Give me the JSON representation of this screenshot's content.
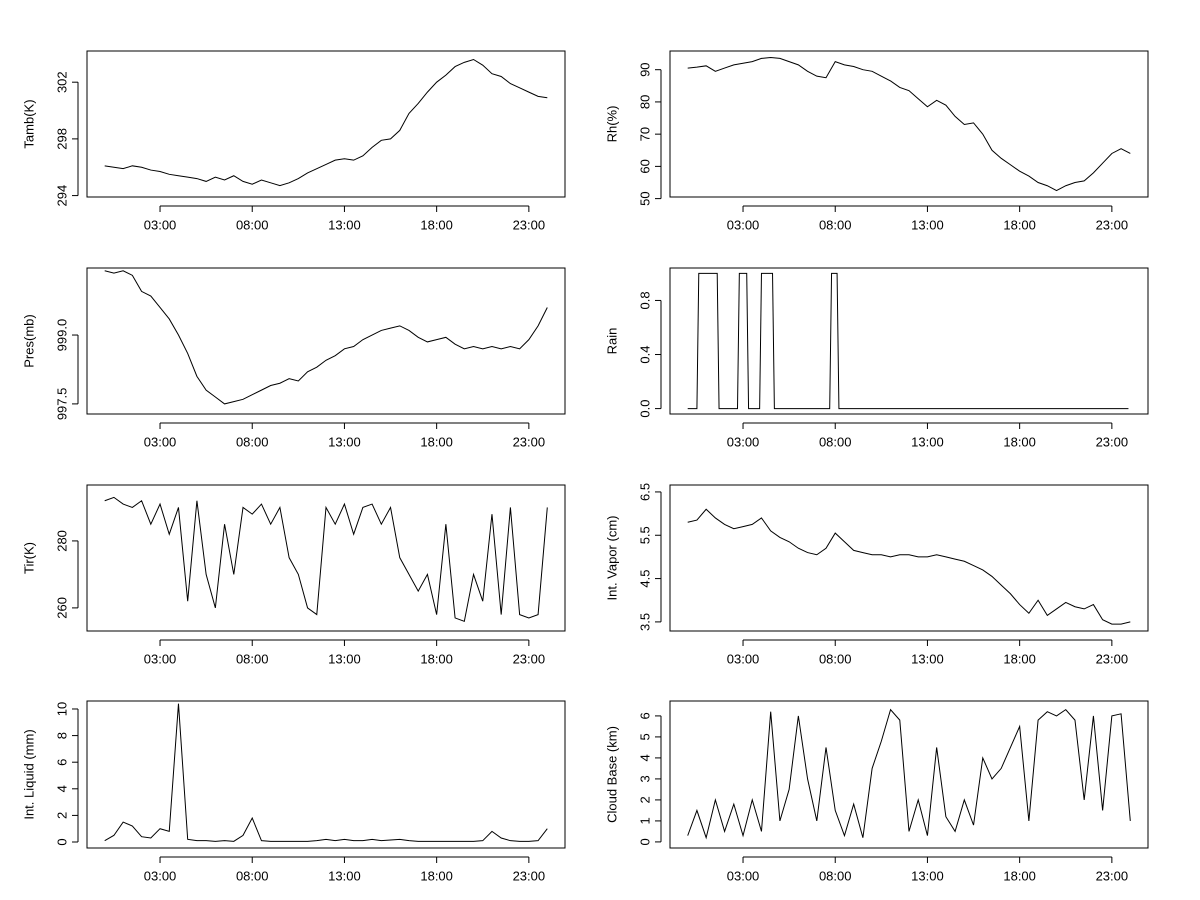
{
  "chart_data": [
    {
      "type": "line",
      "ylabel": "Tamb(K)",
      "color": "#000000",
      "grid": false,
      "x": [
        0,
        0.5,
        1,
        1.5,
        2,
        2.5,
        3,
        3.5,
        4,
        4.5,
        5,
        5.5,
        6,
        6.5,
        7,
        7.5,
        8,
        8.5,
        9,
        9.5,
        10,
        10.5,
        11,
        11.5,
        12,
        12.5,
        13,
        13.5,
        14,
        14.5,
        15,
        15.5,
        16,
        16.5,
        17,
        17.5,
        18,
        18.5,
        19,
        19.5,
        20,
        20.5,
        21,
        21.5,
        22,
        22.5,
        23,
        23.5,
        24
      ],
      "values": [
        296.1,
        296.0,
        295.9,
        296.1,
        296.0,
        295.8,
        295.7,
        295.5,
        295.4,
        295.3,
        295.2,
        295.0,
        295.3,
        295.1,
        295.4,
        295.0,
        294.8,
        295.1,
        294.9,
        294.7,
        294.9,
        295.2,
        295.6,
        295.9,
        296.2,
        296.5,
        296.6,
        296.5,
        296.8,
        297.4,
        297.9,
        298.0,
        298.6,
        299.8,
        300.5,
        301.3,
        302.0,
        302.5,
        303.1,
        303.4,
        303.6,
        303.2,
        302.6,
        302.4,
        301.9,
        301.6,
        301.3,
        301.0,
        300.9
      ],
      "xlim": [
        -0.96,
        24.96
      ],
      "xticks": [
        {
          "value": 3,
          "label": "03:00"
        },
        {
          "value": 8,
          "label": "08:00"
        },
        {
          "value": 13,
          "label": "13:00"
        },
        {
          "value": 18,
          "label": "18:00"
        },
        {
          "value": 23,
          "label": "23:00"
        }
      ],
      "ylim": [
        293.9,
        304.2
      ],
      "yticks": [
        294,
        298,
        302
      ]
    },
    {
      "type": "line",
      "ylabel": "Rh(%)",
      "color": "#000000",
      "grid": false,
      "x": [
        0,
        0.5,
        1,
        1.5,
        2,
        2.5,
        3,
        3.5,
        4,
        4.5,
        5,
        5.5,
        6,
        6.5,
        7,
        7.5,
        8,
        8.5,
        9,
        9.5,
        10,
        10.5,
        11,
        11.5,
        12,
        12.5,
        13,
        13.5,
        14,
        14.5,
        15,
        15.5,
        16,
        16.5,
        17,
        17.5,
        18,
        18.5,
        19,
        19.5,
        20,
        20.5,
        21,
        21.5,
        22,
        22.5,
        23,
        23.5,
        24
      ],
      "values": [
        90.5,
        90.8,
        91.2,
        89.5,
        90.5,
        91.5,
        92.0,
        92.5,
        93.5,
        93.8,
        93.5,
        92.5,
        91.5,
        89.5,
        88.0,
        87.5,
        92.5,
        91.5,
        91.0,
        90.0,
        89.5,
        88.0,
        86.5,
        84.5,
        83.5,
        81.0,
        78.5,
        80.5,
        79.0,
        75.5,
        73.0,
        73.5,
        70.0,
        65.0,
        62.5,
        60.5,
        58.5,
        57.0,
        55.0,
        54.0,
        52.5,
        54.0,
        55.0,
        55.5,
        58.0,
        61.0,
        64.0,
        65.5,
        64.0
      ],
      "xlim": [
        -0.96,
        24.96
      ],
      "xticks": [
        {
          "value": 3,
          "label": "03:00"
        },
        {
          "value": 8,
          "label": "08:00"
        },
        {
          "value": 13,
          "label": "13:00"
        },
        {
          "value": 18,
          "label": "18:00"
        },
        {
          "value": 23,
          "label": "23:00"
        }
      ],
      "ylim": [
        50.5,
        95.8
      ],
      "yticks": [
        50,
        60,
        70,
        80,
        90
      ]
    },
    {
      "type": "line",
      "ylabel": "Pres(mb)",
      "color": "#000000",
      "grid": false,
      "x": [
        0,
        0.5,
        1,
        1.5,
        2,
        2.5,
        3,
        3.5,
        4,
        4.5,
        5,
        5.5,
        6,
        6.5,
        7,
        7.5,
        8,
        8.5,
        9,
        9.5,
        10,
        10.5,
        11,
        11.5,
        12,
        12.5,
        13,
        13.5,
        14,
        14.5,
        15,
        15.5,
        16,
        16.5,
        17,
        17.5,
        18,
        18.5,
        19,
        19.5,
        20,
        20.5,
        21,
        21.5,
        22,
        22.5,
        23,
        23.5,
        24
      ],
      "values": [
        1000.4,
        1000.35,
        1000.4,
        1000.3,
        999.95,
        999.85,
        999.6,
        999.35,
        999.0,
        998.6,
        998.1,
        997.8,
        997.65,
        997.5,
        997.55,
        997.6,
        997.7,
        997.8,
        997.9,
        997.95,
        998.05,
        998.0,
        998.2,
        998.3,
        998.45,
        998.55,
        998.7,
        998.75,
        998.9,
        999.0,
        999.1,
        999.15,
        999.2,
        999.1,
        998.95,
        998.85,
        998.9,
        998.95,
        998.8,
        998.7,
        998.75,
        998.7,
        998.75,
        998.7,
        998.75,
        998.7,
        998.9,
        999.2,
        999.6
      ],
      "xlim": [
        -0.96,
        24.96
      ],
      "xticks": [
        {
          "value": 3,
          "label": "03:00"
        },
        {
          "value": 8,
          "label": "08:00"
        },
        {
          "value": 13,
          "label": "13:00"
        },
        {
          "value": 18,
          "label": "18:00"
        },
        {
          "value": 23,
          "label": "23:00"
        }
      ],
      "ylim": [
        997.28,
        1000.46
      ],
      "yticks": [
        997.5,
        {
          "value": 999,
          "label": "999.0"
        }
      ]
    },
    {
      "type": "line",
      "ylabel": "Rain",
      "color": "#000000",
      "grid": false,
      "x": [
        0,
        0.5,
        0.6,
        1.6,
        1.7,
        2.7,
        2.8,
        3.2,
        3.3,
        3.9,
        4.0,
        4.6,
        4.7,
        7.7,
        7.8,
        8.1,
        8.2,
        23.9
      ],
      "values": [
        0,
        0,
        1,
        1,
        0,
        0,
        1,
        1,
        0,
        0,
        1,
        1,
        0,
        0,
        1,
        1,
        0,
        0
      ],
      "xlim": [
        -0.96,
        24.96
      ],
      "xticks": [
        {
          "value": 3,
          "label": "03:00"
        },
        {
          "value": 8,
          "label": "08:00"
        },
        {
          "value": 13,
          "label": "13:00"
        },
        {
          "value": 18,
          "label": "18:00"
        },
        {
          "value": 23,
          "label": "23:00"
        }
      ],
      "ylim": [
        -0.04,
        1.04
      ],
      "yticks": [
        {
          "value": 0,
          "label": "0.0"
        },
        0.4,
        0.8
      ]
    },
    {
      "type": "line",
      "ylabel": "Tir(K)",
      "color": "#000000",
      "grid": false,
      "x": [
        0,
        0.5,
        1,
        1.5,
        2,
        2.5,
        3,
        3.5,
        4,
        4.5,
        5,
        5.5,
        6,
        6.5,
        7,
        7.5,
        8,
        8.5,
        9,
        9.5,
        10,
        10.5,
        11,
        11.5,
        12,
        12.5,
        13,
        13.5,
        14,
        14.5,
        15,
        15.5,
        16,
        16.5,
        17,
        17.5,
        18,
        18.5,
        19,
        19.5,
        20,
        20.5,
        21,
        21.5,
        22,
        22.5,
        23,
        23.5,
        24
      ],
      "values": [
        292,
        293,
        291,
        290,
        292,
        285,
        291,
        282,
        290,
        262,
        292,
        270,
        260,
        285,
        270,
        290,
        288,
        291,
        285,
        290,
        275,
        270,
        260,
        258,
        290,
        285,
        291,
        282,
        290,
        291,
        285,
        290,
        275,
        270,
        265,
        270,
        258,
        285,
        257,
        256,
        270,
        262,
        288,
        258,
        290,
        258,
        257,
        258,
        290
      ],
      "xlim": [
        -0.96,
        24.96
      ],
      "xticks": [
        {
          "value": 3,
          "label": "03:00"
        },
        {
          "value": 8,
          "label": "08:00"
        },
        {
          "value": 13,
          "label": "13:00"
        },
        {
          "value": 18,
          "label": "18:00"
        },
        {
          "value": 23,
          "label": "23:00"
        }
      ],
      "ylim": [
        253.1,
        296.7
      ],
      "yticks": [
        260,
        280
      ]
    },
    {
      "type": "line",
      "ylabel": "Int. Vapor (cm)",
      "color": "#000000",
      "grid": false,
      "x": [
        0,
        0.5,
        1,
        1.5,
        2,
        2.5,
        3,
        3.5,
        4,
        4.5,
        5,
        5.5,
        6,
        6.5,
        7,
        7.5,
        8,
        8.5,
        9,
        9.5,
        10,
        10.5,
        11,
        11.5,
        12,
        12.5,
        13,
        13.5,
        14,
        14.5,
        15,
        15.5,
        16,
        16.5,
        17,
        17.5,
        18,
        18.5,
        19,
        19.5,
        20,
        20.5,
        21,
        21.5,
        22,
        22.5,
        23,
        23.5,
        24
      ],
      "values": [
        5.8,
        5.85,
        6.1,
        5.9,
        5.75,
        5.65,
        5.7,
        5.75,
        5.9,
        5.6,
        5.45,
        5.35,
        5.2,
        5.1,
        5.05,
        5.2,
        5.55,
        5.35,
        5.15,
        5.1,
        5.05,
        5.05,
        5.0,
        5.05,
        5.05,
        5.0,
        5.0,
        5.05,
        5.0,
        4.95,
        4.9,
        4.8,
        4.7,
        4.55,
        4.35,
        4.15,
        3.9,
        3.7,
        4.0,
        3.65,
        3.8,
        3.95,
        3.85,
        3.8,
        3.9,
        3.55,
        3.45,
        3.45,
        3.5
      ],
      "xlim": [
        -0.96,
        24.96
      ],
      "xticks": [
        {
          "value": 3,
          "label": "03:00"
        },
        {
          "value": 8,
          "label": "08:00"
        },
        {
          "value": 13,
          "label": "13:00"
        },
        {
          "value": 18,
          "label": "18:00"
        },
        {
          "value": 23,
          "label": "23:00"
        }
      ],
      "ylim": [
        3.29,
        6.66
      ],
      "yticks": [
        3.5,
        4.5,
        5.5,
        6.5
      ]
    },
    {
      "type": "line",
      "ylabel": "Int. Liquid (mm)",
      "color": "#000000",
      "grid": false,
      "x": [
        0,
        0.5,
        1,
        1.5,
        2,
        2.5,
        3,
        3.5,
        4,
        4.5,
        5,
        5.5,
        6,
        6.5,
        7,
        7.5,
        8,
        8.5,
        9,
        9.5,
        10,
        10.5,
        11,
        11.5,
        12,
        12.5,
        13,
        13.5,
        14,
        14.5,
        15,
        15.5,
        16,
        16.5,
        17,
        17.5,
        18,
        18.5,
        19,
        19.5,
        20,
        20.5,
        21,
        21.5,
        22,
        22.5,
        23,
        23.5,
        24
      ],
      "values": [
        0.1,
        0.5,
        1.5,
        1.2,
        0.4,
        0.3,
        1.0,
        0.8,
        10.4,
        0.2,
        0.1,
        0.1,
        0.05,
        0.1,
        0.05,
        0.5,
        1.8,
        0.1,
        0.05,
        0.05,
        0.05,
        0.05,
        0.05,
        0.1,
        0.2,
        0.1,
        0.2,
        0.1,
        0.1,
        0.2,
        0.1,
        0.15,
        0.2,
        0.1,
        0.05,
        0.05,
        0.05,
        0.05,
        0.05,
        0.05,
        0.05,
        0.1,
        0.8,
        0.3,
        0.1,
        0.05,
        0.05,
        0.1,
        1.0
      ],
      "xlim": [
        -0.96,
        24.96
      ],
      "xticks": [
        {
          "value": 3,
          "label": "03:00"
        },
        {
          "value": 8,
          "label": "08:00"
        },
        {
          "value": 13,
          "label": "13:00"
        },
        {
          "value": 18,
          "label": "18:00"
        },
        {
          "value": 23,
          "label": "23:00"
        }
      ],
      "ylim": [
        -0.45,
        10.6
      ],
      "yticks": [
        0,
        2,
        4,
        6,
        8,
        10
      ]
    },
    {
      "type": "line",
      "ylabel": "Cloud Base (km)",
      "color": "#000000",
      "grid": false,
      "x": [
        0,
        0.5,
        1,
        1.5,
        2,
        2.5,
        3,
        3.5,
        4,
        4.5,
        5,
        5.5,
        6,
        6.5,
        7,
        7.5,
        8,
        8.5,
        9,
        9.5,
        10,
        10.5,
        11,
        11.5,
        12,
        12.5,
        13,
        13.5,
        14,
        14.5,
        15,
        15.5,
        16,
        16.5,
        17,
        17.5,
        18,
        18.5,
        19,
        19.5,
        20,
        20.5,
        21,
        21.5,
        22,
        22.5,
        23,
        23.5,
        24
      ],
      "values": [
        0.3,
        1.5,
        0.2,
        2.0,
        0.5,
        1.8,
        0.3,
        2.0,
        0.5,
        6.2,
        1.0,
        2.5,
        6.0,
        3.0,
        1.0,
        4.5,
        1.5,
        0.3,
        1.8,
        0.2,
        3.5,
        4.8,
        6.3,
        5.8,
        0.5,
        2.0,
        0.3,
        4.5,
        1.2,
        0.5,
        2.0,
        0.8,
        4.0,
        3.0,
        3.5,
        4.5,
        5.5,
        1.0,
        5.8,
        6.2,
        6.0,
        6.3,
        5.8,
        2.0,
        6.0,
        1.5,
        6.0,
        6.1,
        1.0
      ],
      "xlim": [
        -0.96,
        24.96
      ],
      "xticks": [
        {
          "value": 3,
          "label": "03:00"
        },
        {
          "value": 8,
          "label": "08:00"
        },
        {
          "value": 13,
          "label": "13:00"
        },
        {
          "value": 18,
          "label": "18:00"
        },
        {
          "value": 23,
          "label": "23:00"
        }
      ],
      "ylim": [
        -0.29,
        6.71
      ],
      "yticks": [
        0,
        1,
        2,
        3,
        4,
        5,
        6
      ]
    }
  ]
}
